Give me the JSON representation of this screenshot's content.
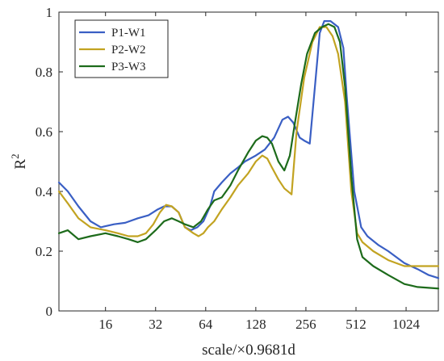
{
  "chart_data": {
    "type": "line",
    "title": "",
    "xlabel": "scale/×0.9681d",
    "ylabel": "R",
    "ylabel_sup": "2",
    "x_scale": "log2",
    "xlim": [
      8.4,
      1600
    ],
    "ylim": [
      0,
      1
    ],
    "x_ticks": [
      16,
      32,
      64,
      128,
      256,
      512,
      1024
    ],
    "x_tick_labels": [
      "16",
      "32",
      "64",
      "128",
      "256",
      "512",
      "1024"
    ],
    "y_ticks": [
      0,
      0.2,
      0.4,
      0.6,
      0.8,
      1
    ],
    "y_tick_labels": [
      "0",
      "0.2",
      "0.4",
      "0.6",
      "0.8",
      "1"
    ],
    "grid": false,
    "legend_position": "top-left",
    "series": [
      {
        "name": "P1-W1",
        "color": "#3a5fc4",
        "x": [
          8.4,
          9.5,
          11,
          13,
          15,
          18,
          21,
          25,
          29,
          33,
          36,
          40,
          44,
          48,
          52,
          57,
          62,
          68,
          72,
          80,
          90,
          100,
          110,
          128,
          145,
          165,
          185,
          200,
          215,
          235,
          250,
          270,
          290,
          310,
          330,
          360,
          400,
          430,
          450,
          500,
          550,
          600,
          700,
          800,
          1000,
          1200,
          1400,
          1600
        ],
        "y": [
          0.43,
          0.4,
          0.35,
          0.3,
          0.28,
          0.29,
          0.295,
          0.31,
          0.32,
          0.34,
          0.35,
          0.35,
          0.33,
          0.28,
          0.27,
          0.28,
          0.3,
          0.35,
          0.4,
          0.43,
          0.46,
          0.48,
          0.5,
          0.52,
          0.54,
          0.58,
          0.64,
          0.65,
          0.63,
          0.58,
          0.57,
          0.56,
          0.75,
          0.93,
          0.97,
          0.97,
          0.95,
          0.88,
          0.72,
          0.4,
          0.28,
          0.25,
          0.22,
          0.2,
          0.16,
          0.14,
          0.12,
          0.11
        ]
      },
      {
        "name": "P2-W2",
        "color": "#c2a321",
        "x": [
          8.4,
          9.5,
          11,
          13,
          16,
          19,
          22,
          25,
          28,
          31,
          34,
          37,
          40,
          44,
          48,
          54,
          58,
          62,
          66,
          72,
          80,
          90,
          100,
          115,
          128,
          140,
          150,
          160,
          175,
          190,
          210,
          225,
          250,
          280,
          310,
          340,
          370,
          400,
          440,
          480,
          520,
          560,
          650,
          800,
          1000,
          1200,
          1600
        ],
        "y": [
          0.4,
          0.36,
          0.31,
          0.28,
          0.27,
          0.26,
          0.25,
          0.25,
          0.26,
          0.29,
          0.33,
          0.355,
          0.35,
          0.33,
          0.28,
          0.26,
          0.25,
          0.26,
          0.28,
          0.3,
          0.34,
          0.38,
          0.42,
          0.46,
          0.5,
          0.52,
          0.51,
          0.48,
          0.44,
          0.41,
          0.39,
          0.6,
          0.78,
          0.9,
          0.95,
          0.95,
          0.92,
          0.86,
          0.7,
          0.4,
          0.26,
          0.23,
          0.2,
          0.17,
          0.15,
          0.15,
          0.15
        ]
      },
      {
        "name": "P3-W3",
        "color": "#1d6b1b",
        "x": [
          8.4,
          9.5,
          11,
          13,
          16,
          19,
          22,
          25,
          28,
          32,
          36,
          40,
          44,
          48,
          54,
          60,
          66,
          72,
          80,
          90,
          100,
          115,
          128,
          140,
          150,
          160,
          175,
          190,
          205,
          220,
          240,
          260,
          290,
          320,
          350,
          380,
          410,
          440,
          480,
          520,
          560,
          650,
          800,
          1000,
          1200,
          1600
        ],
        "y": [
          0.26,
          0.27,
          0.24,
          0.25,
          0.26,
          0.25,
          0.24,
          0.23,
          0.24,
          0.27,
          0.3,
          0.31,
          0.3,
          0.29,
          0.28,
          0.3,
          0.34,
          0.37,
          0.38,
          0.42,
          0.47,
          0.53,
          0.57,
          0.585,
          0.58,
          0.56,
          0.5,
          0.47,
          0.52,
          0.63,
          0.76,
          0.86,
          0.93,
          0.95,
          0.96,
          0.95,
          0.9,
          0.75,
          0.45,
          0.24,
          0.18,
          0.15,
          0.12,
          0.09,
          0.08,
          0.075
        ]
      }
    ]
  }
}
